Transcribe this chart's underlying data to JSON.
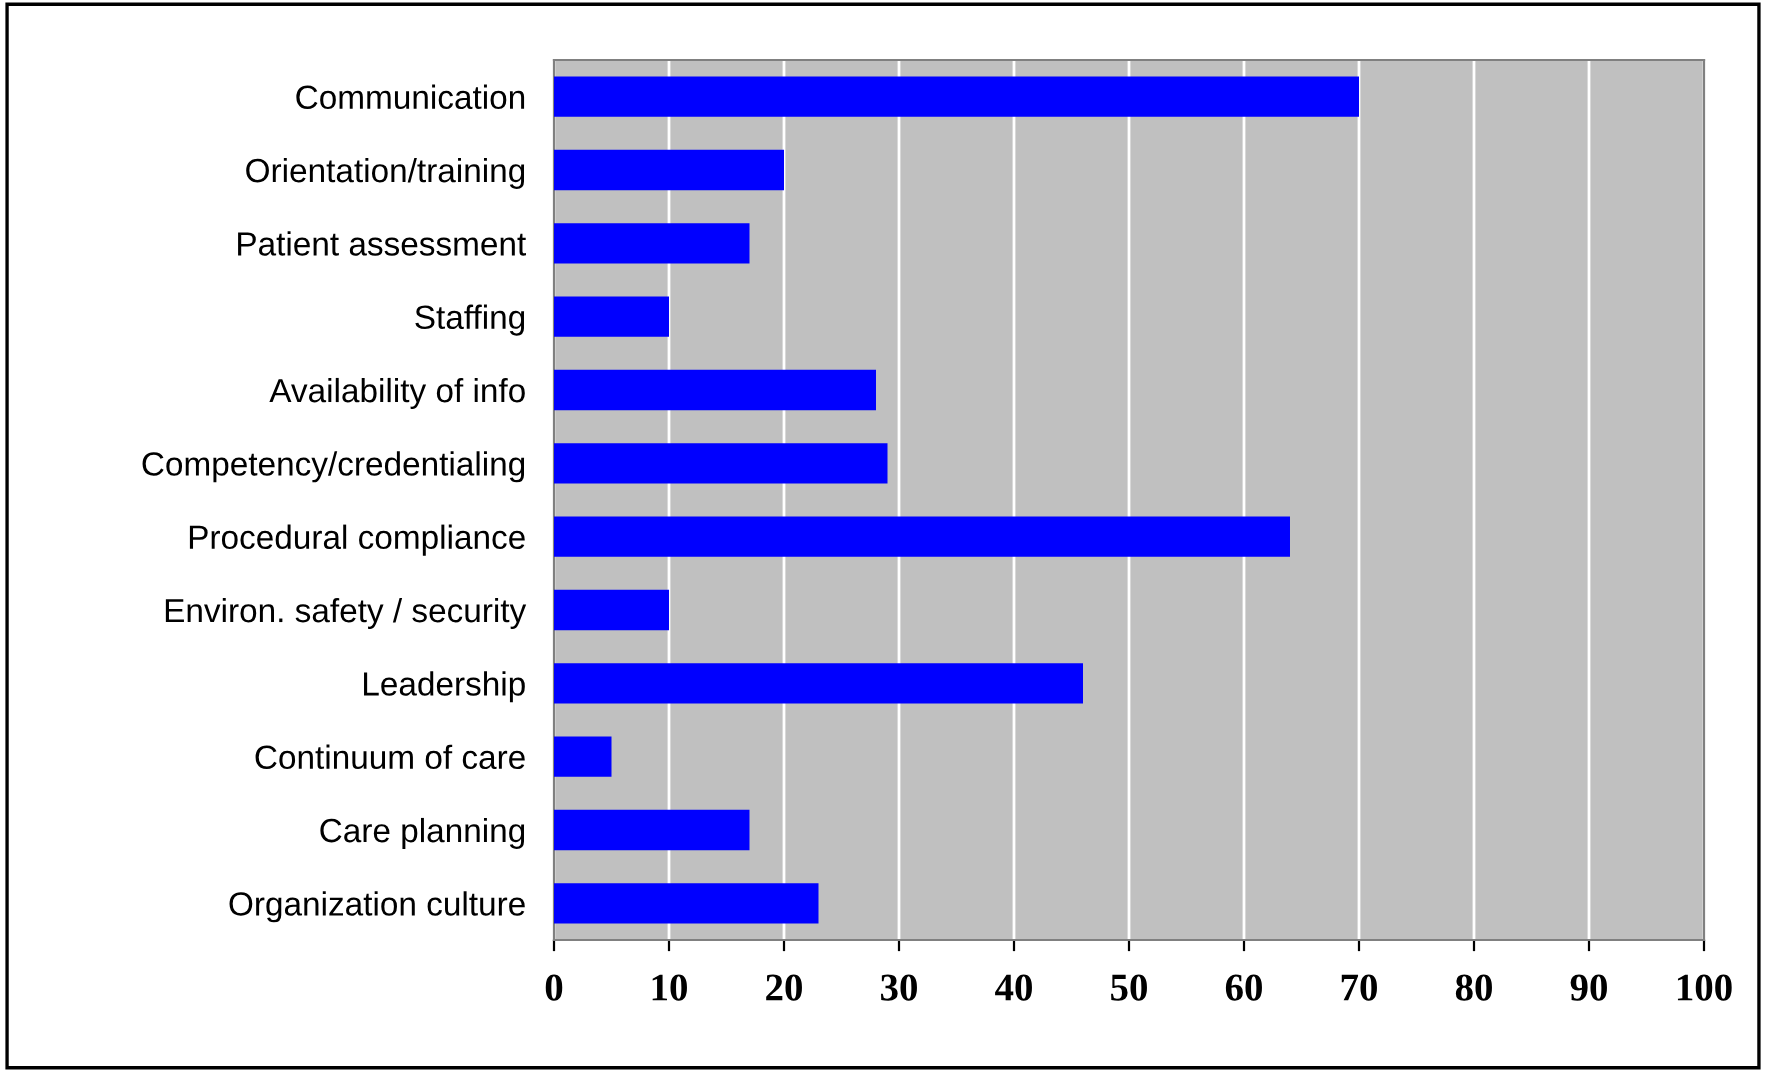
{
  "chart_data": {
    "type": "bar",
    "orientation": "horizontal",
    "categories": [
      "Communication",
      "Orientation/training",
      "Patient assessment",
      "Staffing",
      "Availability of info",
      "Competency/credentialing",
      "Procedural compliance",
      "Environ. safety / security",
      "Leadership",
      "Continuum of care",
      "Care planning",
      "Organization culture"
    ],
    "values": [
      70,
      20,
      17,
      10,
      28,
      29,
      64,
      10,
      46,
      5,
      17,
      23
    ],
    "color": "#0000ff",
    "xlim": [
      0,
      100
    ],
    "xticks": [
      0,
      10,
      20,
      30,
      40,
      50,
      60,
      70,
      80,
      90,
      100
    ],
    "grid": "x"
  }
}
